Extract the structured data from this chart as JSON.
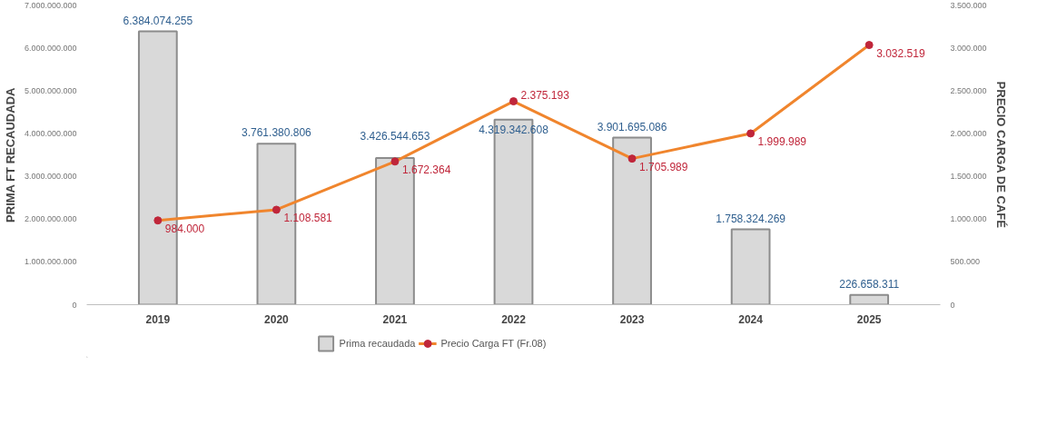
{
  "chart_data": {
    "type": "bar",
    "ylabel": "PRIMA FT RECAUDADA",
    "y2label": "PRECIO CARGA DE CAFÉ",
    "categories": [
      "2019",
      "2020",
      "2021",
      "2022",
      "2023",
      "2024",
      "2025"
    ],
    "ylim": [
      0,
      7000000000
    ],
    "yticks": [
      {
        "value": 0,
        "label": "0"
      },
      {
        "value": 1000000000,
        "label": "1.000.000.000"
      },
      {
        "value": 2000000000,
        "label": "2.000.000.000"
      },
      {
        "value": 3000000000,
        "label": "3.000.000.000"
      },
      {
        "value": 4000000000,
        "label": "4.000.000.000"
      },
      {
        "value": 5000000000,
        "label": "5.000.000.000"
      },
      {
        "value": 6000000000,
        "label": "6.000.000.000"
      },
      {
        "value": 7000000000,
        "label": "7.000.000.000"
      }
    ],
    "y2lim": [
      0,
      3500000
    ],
    "y2ticks": [
      {
        "value": 0,
        "label": "0"
      },
      {
        "value": 500000,
        "label": "500.000"
      },
      {
        "value": 1000000,
        "label": "1.000.000"
      },
      {
        "value": 1500000,
        "label": "1.500.000"
      },
      {
        "value": 2000000,
        "label": "2.000.000"
      },
      {
        "value": 2500000,
        "label": "2.500.000"
      },
      {
        "value": 3000000,
        "label": "3.000.000"
      },
      {
        "value": 3500000,
        "label": "3.500.000"
      }
    ],
    "series": [
      {
        "name": "Prima recaudada",
        "color": "#d9d9d9",
        "values": [
          6384074255,
          3761380806,
          3426544653,
          4319342608,
          3901695086,
          1758324269,
          226658311
        ],
        "value_labels": [
          "6.384.074.255",
          "3.761.380.806",
          "3.426.544.653",
          "4.319.342.608",
          "3.901.695.086",
          "1.758.324.269",
          "226.658.311"
        ]
      },
      {
        "name": "Precio Carga FT (Fr.08)",
        "type": "line",
        "axis": "y2",
        "color": "#f0852d",
        "marker": "circle",
        "values": [
          984000,
          1108581,
          1672364,
          2375193,
          1705989,
          1999989,
          3032519
        ],
        "value_labels": [
          "984.000",
          "1.108.581",
          "1.672.364",
          "2.375.193",
          "1.705.989",
          "1.999.989",
          "3.032.519"
        ]
      }
    ],
    "grid": false,
    "legend": "bottom"
  }
}
